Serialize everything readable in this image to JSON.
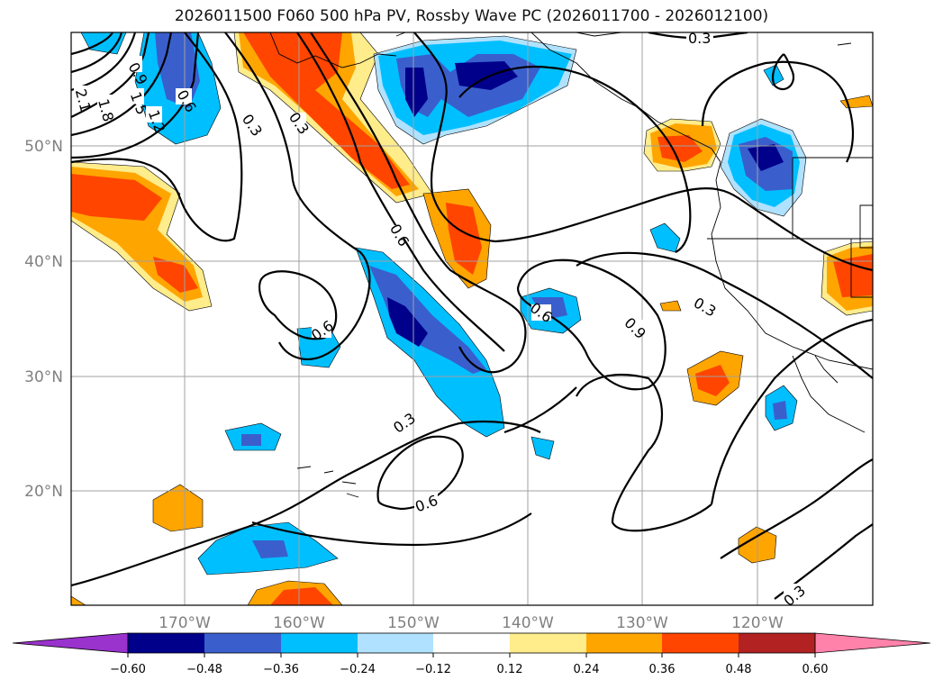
{
  "title": "2026011500 F060 500 hPa PV, Rossby Wave PC (2026011700 - 2026012100)",
  "map": {
    "lat_labels": [
      "50°N",
      "40°N",
      "30°N",
      "20°N"
    ],
    "lon_labels": [
      "170°W",
      "160°W",
      "150°W",
      "140°W",
      "130°W",
      "120°W"
    ],
    "contour_labels": [
      "0.9",
      "1.8",
      "2.1",
      "1.5",
      "1.2",
      "0.6",
      "0.3",
      "0.3",
      "0.6",
      "0.6",
      "0.6",
      "0.9",
      "0.3",
      "0.3",
      "0.6",
      "0.3",
      "0.3"
    ]
  },
  "colorbar": {
    "colors": [
      "#9a32cd",
      "#00008b",
      "#3a5fcd",
      "#00bfff",
      "#b0e2ff",
      "#ffffff",
      "#ffec8b",
      "#ffa500",
      "#ff4500",
      "#b22222",
      "#ff82ab"
    ],
    "tick_labels": [
      "−0.60",
      "−0.48",
      "−0.36",
      "−0.24",
      "−0.12",
      "0.12",
      "0.24",
      "0.36",
      "0.48",
      "0.60"
    ]
  }
}
